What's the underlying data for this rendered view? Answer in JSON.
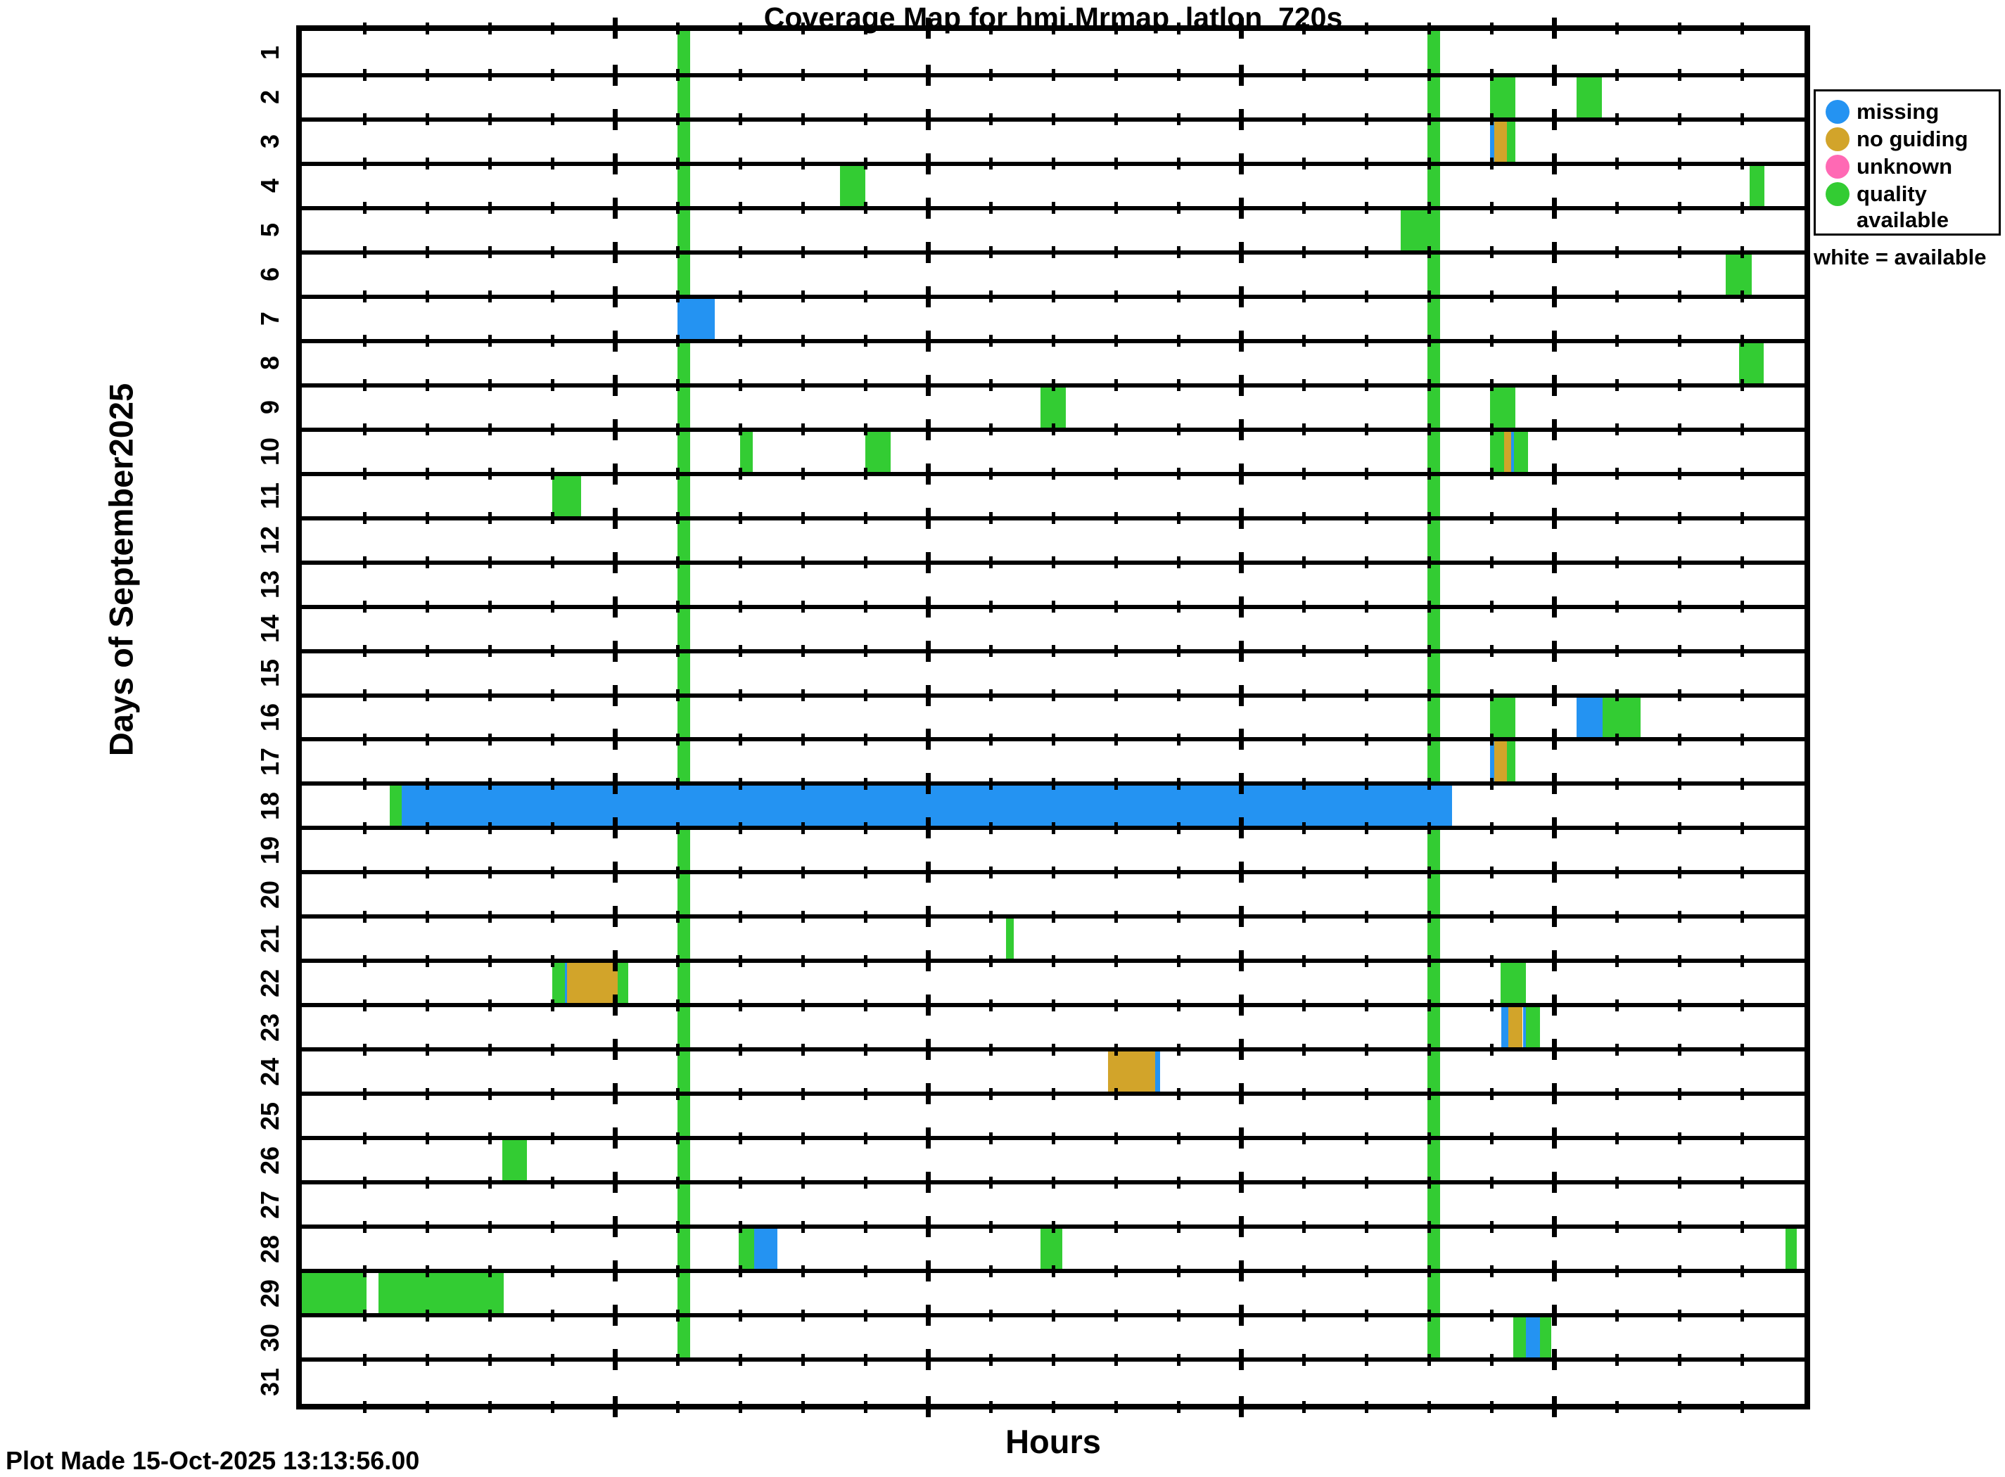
{
  "title": "Coverage Map for hmi.Mrmap_latlon_720s",
  "footer": "Plot Made 15-Oct-2025 13:13:56.00",
  "chart_data": {
    "type": "heatmap",
    "title": "Coverage Map for hmi.Mrmap_latlon_720s",
    "xlabel": "Hours",
    "ylabel": "Days of September2025",
    "x_range": [
      0,
      24
    ],
    "grid": "per-day lanes with hourly tick marks, no hour numerals",
    "days": [
      "1",
      "2",
      "3",
      "4",
      "5",
      "6",
      "7",
      "8",
      "9",
      "10",
      "11",
      "12",
      "13",
      "14",
      "15",
      "16",
      "17",
      "18",
      "19",
      "20",
      "21",
      "22",
      "23",
      "24",
      "25",
      "26",
      "27",
      "28",
      "29",
      "30",
      "31"
    ],
    "minor_tick_every_hours": 1,
    "major_tick_hours": [
      5,
      10,
      15,
      20
    ],
    "legend": [
      {
        "label": "missing",
        "status": "missing"
      },
      {
        "label": "no guiding",
        "status": "no_guiding"
      },
      {
        "label": "unknown",
        "status": "unknown"
      },
      {
        "label": "quality available",
        "status": "quality_available"
      }
    ],
    "legend_note": "white = available",
    "legend_position": "right",
    "status_colors": {
      "missing": "#2493F2",
      "no_guiding": "#D2A42A",
      "unknown": "#FF69B4",
      "quality_available": "#33CC33"
    },
    "full_day_stripes": [
      {
        "day_start": 1,
        "day_end": 30,
        "start_hour": 6.0,
        "end_hour": 6.2,
        "status": "quality_available"
      },
      {
        "day_start": 1,
        "day_end": 30,
        "start_hour": 17.98,
        "end_hour": 18.18,
        "status": "quality_available"
      }
    ],
    "segments": [
      {
        "day": 2,
        "start_hour": 18.98,
        "end_hour": 19.38,
        "status": "quality_available"
      },
      {
        "day": 2,
        "start_hour": 20.36,
        "end_hour": 20.76,
        "status": "quality_available"
      },
      {
        "day": 3,
        "start_hour": 18.98,
        "end_hour": 19.04,
        "status": "missing"
      },
      {
        "day": 3,
        "start_hour": 19.04,
        "end_hour": 19.25,
        "status": "no_guiding"
      },
      {
        "day": 3,
        "start_hour": 19.25,
        "end_hour": 19.38,
        "status": "quality_available"
      },
      {
        "day": 4,
        "start_hour": 8.6,
        "end_hour": 9.0,
        "status": "quality_available"
      },
      {
        "day": 4,
        "start_hour": 23.12,
        "end_hour": 23.36,
        "status": "quality_available"
      },
      {
        "day": 5,
        "start_hour": 17.55,
        "end_hour": 18.16,
        "status": "quality_available"
      },
      {
        "day": 6,
        "start_hour": 22.74,
        "end_hour": 23.16,
        "status": "quality_available"
      },
      {
        "day": 7,
        "start_hour": 6.0,
        "end_hour": 6.6,
        "status": "missing"
      },
      {
        "day": 8,
        "start_hour": 22.95,
        "end_hour": 23.35,
        "status": "quality_available"
      },
      {
        "day": 9,
        "start_hour": 11.8,
        "end_hour": 12.2,
        "status": "quality_available"
      },
      {
        "day": 9,
        "start_hour": 18.98,
        "end_hour": 19.38,
        "status": "quality_available"
      },
      {
        "day": 10,
        "start_hour": 7.0,
        "end_hour": 7.2,
        "status": "quality_available"
      },
      {
        "day": 10,
        "start_hour": 9.0,
        "end_hour": 9.4,
        "status": "quality_available"
      },
      {
        "day": 10,
        "start_hour": 18.98,
        "end_hour": 19.2,
        "status": "quality_available"
      },
      {
        "day": 10,
        "start_hour": 19.2,
        "end_hour": 19.32,
        "status": "no_guiding"
      },
      {
        "day": 10,
        "start_hour": 19.32,
        "end_hour": 19.36,
        "status": "missing"
      },
      {
        "day": 10,
        "start_hour": 19.36,
        "end_hour": 19.58,
        "status": "quality_available"
      },
      {
        "day": 11,
        "start_hour": 4.0,
        "end_hour": 4.46,
        "status": "quality_available"
      },
      {
        "day": 16,
        "start_hour": 18.98,
        "end_hour": 19.38,
        "status": "quality_available"
      },
      {
        "day": 16,
        "start_hour": 20.36,
        "end_hour": 20.78,
        "status": "missing"
      },
      {
        "day": 16,
        "start_hour": 20.78,
        "end_hour": 21.38,
        "status": "quality_available"
      },
      {
        "day": 17,
        "start_hour": 18.98,
        "end_hour": 19.04,
        "status": "missing"
      },
      {
        "day": 17,
        "start_hour": 19.04,
        "end_hour": 19.25,
        "status": "no_guiding"
      },
      {
        "day": 17,
        "start_hour": 19.25,
        "end_hour": 19.38,
        "status": "quality_available"
      },
      {
        "day": 18,
        "start_hour": 1.4,
        "end_hour": 1.6,
        "status": "quality_available"
      },
      {
        "day": 18,
        "start_hour": 1.6,
        "end_hour": 18.37,
        "status": "missing"
      },
      {
        "day": 21,
        "start_hour": 11.25,
        "end_hour": 11.37,
        "status": "quality_available"
      },
      {
        "day": 22,
        "start_hour": 4.0,
        "end_hour": 4.2,
        "status": "quality_available"
      },
      {
        "day": 22,
        "start_hour": 4.2,
        "end_hour": 4.24,
        "status": "missing"
      },
      {
        "day": 22,
        "start_hour": 4.24,
        "end_hour": 5.05,
        "status": "no_guiding"
      },
      {
        "day": 22,
        "start_hour": 5.05,
        "end_hour": 5.21,
        "status": "quality_available"
      },
      {
        "day": 22,
        "start_hour": 19.15,
        "end_hour": 19.55,
        "status": "quality_available"
      },
      {
        "day": 23,
        "start_hour": 19.16,
        "end_hour": 19.27,
        "status": "missing"
      },
      {
        "day": 23,
        "start_hour": 19.27,
        "end_hour": 19.5,
        "status": "no_guiding"
      },
      {
        "day": 23,
        "start_hour": 19.5,
        "end_hour": 19.55,
        "status": "missing"
      },
      {
        "day": 23,
        "start_hour": 19.55,
        "end_hour": 19.77,
        "status": "quality_available"
      },
      {
        "day": 24,
        "start_hour": 12.88,
        "end_hour": 13.63,
        "status": "no_guiding"
      },
      {
        "day": 24,
        "start_hour": 13.63,
        "end_hour": 13.71,
        "status": "missing"
      },
      {
        "day": 26,
        "start_hour": 3.2,
        "end_hour": 3.6,
        "status": "quality_available"
      },
      {
        "day": 28,
        "start_hour": 6.98,
        "end_hour": 7.22,
        "status": "quality_available"
      },
      {
        "day": 28,
        "start_hour": 7.22,
        "end_hour": 7.6,
        "status": "missing"
      },
      {
        "day": 28,
        "start_hour": 11.8,
        "end_hour": 12.15,
        "status": "quality_available"
      },
      {
        "day": 28,
        "start_hour": 23.7,
        "end_hour": 23.88,
        "status": "quality_available"
      },
      {
        "day": 29,
        "start_hour": 0.0,
        "end_hour": 1.03,
        "status": "quality_available"
      },
      {
        "day": 29,
        "start_hour": 1.22,
        "end_hour": 3.22,
        "status": "quality_available"
      },
      {
        "day": 30,
        "start_hour": 19.35,
        "end_hour": 19.55,
        "status": "quality_available"
      },
      {
        "day": 30,
        "start_hour": 19.55,
        "end_hour": 19.77,
        "status": "missing"
      },
      {
        "day": 30,
        "start_hour": 19.77,
        "end_hour": 19.95,
        "status": "quality_available"
      }
    ]
  }
}
